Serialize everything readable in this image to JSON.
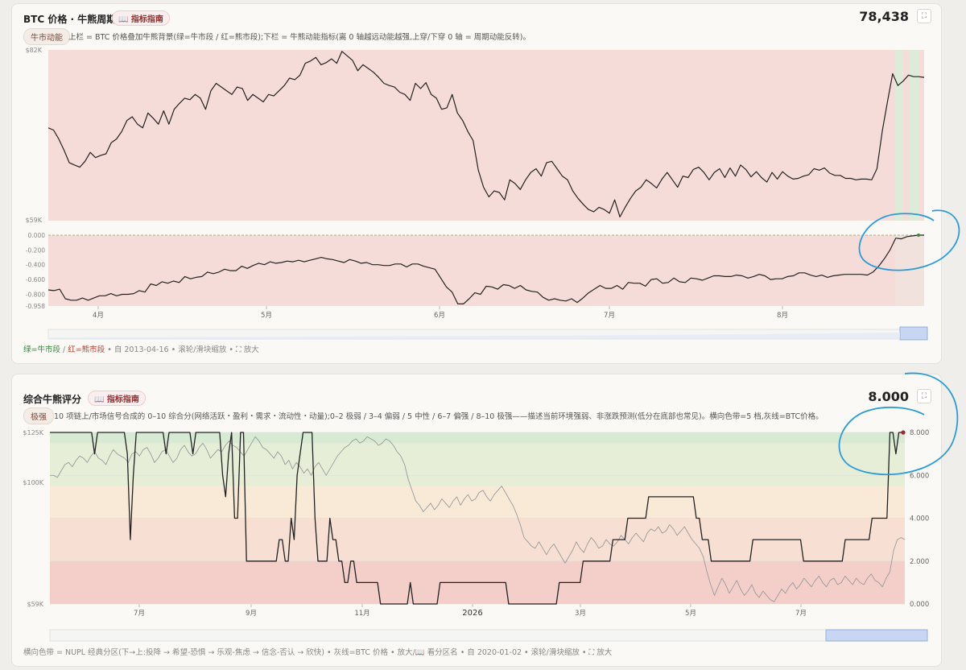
{
  "card1": {
    "title": "BTC 价格 · 牛熊周期",
    "guide_label": "📖 指标指南",
    "value": "78,438",
    "tag": "牛市动能",
    "description": "上栏 = BTC 价格叠加牛熊背景(绿=牛市段 / 红=熊市段);下栏 = 牛熊动能指标(离 0 轴越远动能越强,上穿/下穿 0 轴 = 周期动能反转)。",
    "footer": {
      "green": "绿=牛市段",
      "sep": " / ",
      "red": "红=熊市段",
      "rest": " • 自 2013-04-16 • 滚轮/滑块缩放 • ⛶ 放大"
    }
  },
  "card2": {
    "title": "综合牛熊评分",
    "guide_label": "📖 指标指南",
    "value": "8.000",
    "tag": "极强",
    "description": "10 项链上/市场信号合成的 0–10 综合分(网络活跃・盈利・需求・流动性・动量);0–2 极弱 / 3–4 偏弱 / 5 中性 / 6–7 偏强 / 8–10 极强——描述当前环境强弱、非涨跌预测(低分在底部也常见)。横向色带=5 档,灰线=BTC价格。",
    "footer": "横向色带 = NUPL 经典分区(下→上:投降 → 希望-恐惧 → 乐观-焦虑 → 信念-否认 → 欣快) • 灰线=BTC 价格 • 放大/📖 看分区名 • 自 2020-01-02 • 滚轮/滑块缩放 • ⛶ 放大"
  },
  "chart_data": [
    {
      "type": "line",
      "name": "btc-price-upper",
      "ylim": [
        59000,
        82000
      ],
      "y_ticks": [
        "$82K",
        "$59K"
      ],
      "x_ticks": [
        "4月",
        "5月",
        "6月",
        "7月",
        "8月"
      ],
      "background": [
        {
          "phase": "bear",
          "color": "#f6dcd8"
        },
        {
          "phase": "bull",
          "color": "#dcecd8"
        }
      ],
      "values": [
        71500,
        71200,
        70000,
        68500,
        66800,
        66500,
        66200,
        67000,
        68200,
        67500,
        67800,
        68000,
        69500,
        70000,
        71000,
        72500,
        73000,
        72000,
        71500,
        73500,
        72800,
        72000,
        73800,
        72000,
        74000,
        74800,
        75500,
        75300,
        76000,
        75500,
        74000,
        76500,
        77500,
        77000,
        76500,
        76000,
        77000,
        76800,
        75200,
        76000,
        75500,
        75000,
        76000,
        75800,
        76500,
        77200,
        78200,
        78000,
        78600,
        80200,
        80500,
        81000,
        80000,
        80300,
        80800,
        80200,
        81800,
        81200,
        80600,
        79200,
        80000,
        79500,
        79000,
        78300,
        77500,
        77200,
        77000,
        76300,
        76000,
        75200,
        77500,
        76800,
        77600,
        76000,
        75500,
        74000,
        74200,
        76000,
        73500,
        72500,
        71000,
        69800,
        65800,
        63500,
        62200,
        63000,
        62800,
        61800,
        64500,
        64000,
        63200,
        64500,
        65500,
        66000,
        65000,
        66800,
        67000,
        66000,
        65000,
        64500,
        63000,
        62000,
        61200,
        60500,
        60200,
        60800,
        60500,
        60000,
        61800,
        59500,
        60800,
        62000,
        63000,
        63500,
        64500,
        64000,
        63400,
        64600,
        65500,
        64500,
        63500,
        65000,
        64800,
        65900,
        66200,
        65500,
        64500,
        65500,
        66000,
        64800,
        66100,
        65000,
        66500,
        65900,
        64900,
        65600,
        64800,
        64200,
        65500,
        64600,
        65600,
        65000,
        64600,
        64700,
        65000,
        65200,
        66000,
        65800,
        66100,
        65400,
        65100,
        65100,
        64700,
        64700,
        64500,
        64600,
        64600,
        64500,
        66000,
        71000,
        75000,
        78800,
        77200,
        77800,
        78600,
        78400,
        78400,
        78300
      ]
    },
    {
      "type": "line",
      "name": "bull-bear-momentum-lower",
      "ylim": [
        -0.958,
        0.0
      ],
      "y_ticks": [
        "0.000",
        "-0.200",
        "-0.400",
        "-0.600",
        "-0.800",
        "-0.958"
      ],
      "values": [
        -0.74,
        -0.75,
        -0.73,
        -0.86,
        -0.88,
        -0.88,
        -0.85,
        -0.88,
        -0.85,
        -0.82,
        -0.82,
        -0.79,
        -0.82,
        -0.8,
        -0.8,
        -0.79,
        -0.75,
        -0.77,
        -0.66,
        -0.68,
        -0.63,
        -0.65,
        -0.62,
        -0.64,
        -0.56,
        -0.59,
        -0.57,
        -0.56,
        -0.5,
        -0.52,
        -0.5,
        -0.46,
        -0.48,
        -0.48,
        -0.42,
        -0.45,
        -0.41,
        -0.38,
        -0.4,
        -0.36,
        -0.38,
        -0.37,
        -0.35,
        -0.36,
        -0.34,
        -0.36,
        -0.34,
        -0.32,
        -0.3,
        -0.32,
        -0.33,
        -0.35,
        -0.37,
        -0.33,
        -0.35,
        -0.38,
        -0.37,
        -0.4,
        -0.4,
        -0.41,
        -0.41,
        -0.39,
        -0.39,
        -0.43,
        -0.39,
        -0.39,
        -0.42,
        -0.44,
        -0.46,
        -0.58,
        -0.7,
        -0.77,
        -0.93,
        -0.93,
        -0.86,
        -0.78,
        -0.8,
        -0.69,
        -0.7,
        -0.73,
        -0.67,
        -0.68,
        -0.72,
        -0.68,
        -0.74,
        -0.76,
        -0.77,
        -0.84,
        -0.88,
        -0.86,
        -0.88,
        -0.89,
        -0.86,
        -0.91,
        -0.85,
        -0.78,
        -0.73,
        -0.68,
        -0.72,
        -0.72,
        -0.68,
        -0.73,
        -0.64,
        -0.65,
        -0.65,
        -0.69,
        -0.6,
        -0.59,
        -0.65,
        -0.64,
        -0.58,
        -0.63,
        -0.64,
        -0.58,
        -0.59,
        -0.61,
        -0.58,
        -0.55,
        -0.55,
        -0.56,
        -0.56,
        -0.54,
        -0.55,
        -0.58,
        -0.56,
        -0.53,
        -0.55,
        -0.6,
        -0.59,
        -0.59,
        -0.56,
        -0.55,
        -0.51,
        -0.51,
        -0.54,
        -0.56,
        -0.54,
        -0.57,
        -0.55,
        -0.54,
        -0.53,
        -0.53,
        -0.53,
        -0.53,
        -0.54,
        -0.5,
        -0.42,
        -0.32,
        -0.2,
        -0.04,
        -0.05,
        -0.02,
        -0.01,
        0.0,
        0.0
      ]
    },
    {
      "type": "line",
      "name": "composite-score",
      "ylim": [
        0,
        8
      ],
      "y_ticks_right": [
        "8.000",
        "6.000",
        "4.000",
        "2.000",
        "0.000"
      ],
      "y_ticks_left": [
        "$125K",
        "$100K",
        "$59K"
      ],
      "x_ticks": [
        "7月",
        "9月",
        "11月",
        "2026",
        "3月",
        "5月",
        "7月"
      ],
      "bands": [
        {
          "from": 0,
          "to": 2,
          "color": "#f4cfca"
        },
        {
          "from": 2,
          "to": 4,
          "color": "#f7dfd3"
        },
        {
          "from": 4,
          "to": 5.5,
          "color": "#f9ead8"
        },
        {
          "from": 5.5,
          "to": 7.5,
          "color": "#f5f2d6"
        },
        {
          "from": 7.5,
          "to": 8,
          "color": "#cfe8cc"
        }
      ],
      "series": [
        {
          "values": [
            8,
            8,
            8,
            8,
            8,
            8,
            8,
            8,
            8,
            8,
            8,
            8,
            8,
            8,
            8,
            7,
            8,
            8,
            8,
            8,
            8,
            8,
            8,
            8,
            8,
            8,
            7,
            3,
            6,
            8,
            8,
            8,
            8,
            8,
            8,
            8,
            8,
            8,
            8,
            7,
            8,
            8,
            8,
            8,
            8,
            8,
            8,
            8,
            7,
            8,
            8,
            8,
            8,
            8,
            8,
            8,
            8,
            8,
            6,
            5,
            7,
            8,
            4,
            4,
            8,
            8,
            2,
            2,
            2,
            2,
            2,
            2,
            2,
            2,
            2,
            2,
            2,
            3,
            3,
            2,
            2,
            4,
            3,
            6,
            7,
            8,
            8,
            8,
            8,
            4,
            2,
            2,
            2,
            2,
            4,
            3,
            3,
            2,
            2,
            1,
            1,
            2,
            2,
            1,
            1,
            1,
            1,
            1,
            1,
            1,
            1,
            0,
            0,
            0,
            0,
            0,
            0,
            0,
            0,
            0,
            0,
            1,
            0,
            0,
            0,
            0,
            0,
            0,
            0,
            0,
            0,
            1,
            1,
            1,
            1,
            1,
            1,
            1,
            1,
            1,
            1,
            1,
            1,
            1,
            1,
            1,
            1,
            1,
            1,
            1,
            1,
            1,
            1,
            1,
            0,
            0,
            0,
            0,
            0,
            0,
            0,
            0,
            0,
            0,
            0,
            0,
            0,
            0,
            0,
            0,
            0,
            1,
            1,
            1,
            1,
            1,
            1,
            1,
            1,
            2,
            2,
            2,
            2,
            2,
            2,
            2,
            2,
            2,
            2,
            3,
            3,
            3,
            3,
            3,
            4,
            4,
            4,
            4,
            4,
            4,
            4,
            5,
            5,
            5,
            5,
            5,
            5,
            5,
            5,
            5,
            5,
            5,
            5,
            5,
            5,
            5,
            5,
            4,
            4,
            3,
            3,
            3,
            2,
            2,
            2,
            2,
            2,
            2,
            2,
            2,
            2,
            2,
            2,
            2,
            2,
            2,
            3,
            3,
            3,
            3,
            3,
            3,
            3,
            3,
            3,
            3,
            3,
            3,
            3,
            3,
            3,
            3,
            3,
            2,
            2,
            2,
            2,
            2,
            2,
            2,
            2,
            2,
            2,
            2,
            2,
            2,
            2,
            3,
            3,
            3,
            3,
            3,
            3,
            3,
            3,
            3,
            4,
            4,
            4,
            4,
            4,
            4,
            8,
            8,
            7,
            8,
            8,
            8
          ]
        },
        {
          "values": [
            6,
            6,
            5.9,
            6.2,
            6.5,
            6.6,
            6.4,
            6.7,
            6.9,
            6.8,
            6.6,
            6.9,
            7.1,
            6.8,
            6.7,
            6.5,
            6.9,
            7.2,
            7.0,
            6.9,
            6.8,
            6.6,
            7.0,
            7.1,
            6.9,
            7.2,
            7.3,
            7.0,
            6.6,
            6.8,
            7.1,
            7.2,
            6.9,
            6.6,
            6.8,
            7.2,
            7.4,
            7.1,
            6.9,
            7.0,
            7.3,
            7.5,
            7.2,
            6.8,
            7.0,
            7.2,
            7.1,
            7.4,
            7.6,
            7.4,
            7.3,
            7.1,
            6.9,
            7.2,
            7.5,
            7.8,
            7.6,
            7.3,
            7.2,
            7.0,
            6.8,
            7.1,
            6.9,
            6.5,
            6.7,
            6.3,
            6.6,
            6.4,
            6.1,
            6.3,
            6.0,
            6.4,
            6.6,
            6.3,
            6.0,
            6.3,
            6.6,
            6.9,
            7.1,
            7.3,
            7.4,
            7.6,
            7.7,
            7.5,
            7.6,
            7.8,
            7.7,
            7.6,
            7.4,
            7.5,
            7.7,
            7.6,
            7.4,
            7.1,
            6.9,
            6.5,
            5.8,
            5.3,
            4.8,
            4.6,
            4.3,
            4.5,
            4.7,
            4.4,
            4.6,
            4.9,
            4.7,
            4.5,
            4.8,
            5.0,
            4.6,
            4.9,
            5.1,
            4.8,
            4.9,
            5.2,
            5.3,
            5.0,
            4.8,
            5.1,
            5.3,
            5.5,
            5.2,
            4.9,
            4.6,
            4.2,
            3.7,
            3.1,
            2.9,
            2.7,
            2.6,
            2.9,
            2.6,
            2.3,
            2.6,
            2.8,
            2.5,
            2.2,
            1.9,
            2.2,
            2.5,
            2.9,
            2.6,
            2.4,
            2.8,
            3.1,
            2.9,
            2.6,
            2.7,
            3.0,
            2.8,
            2.7,
            2.9,
            3.2,
            3.0,
            2.8,
            3.1,
            3.3,
            3.1,
            2.9,
            3.3,
            3.5,
            3.4,
            3.6,
            3.3,
            3.4,
            3.7,
            3.5,
            3.2,
            3.4,
            3.6,
            3.3,
            3.0,
            2.8,
            2.6,
            2.2,
            1.5,
            0.9,
            0.4,
            0.8,
            1.2,
            0.9,
            0.5,
            0.8,
            1.1,
            0.7,
            0.4,
            0.6,
            0.9,
            0.5,
            0.3,
            0.6,
            0.4,
            0.2,
            0.1,
            0.4,
            0.7,
            0.5,
            0.8,
            1.0,
            0.7,
            0.9,
            1.2,
            1.0,
            0.8,
            1.1,
            1.3,
            1.0,
            0.8,
            1.1,
            1.2,
            0.9,
            1.0,
            1.3,
            1.1,
            0.9,
            1.2,
            1.0,
            0.9,
            1.2,
            1.4,
            1.1,
            1.0,
            0.8,
            1.2,
            1.5,
            2.5,
            3.0,
            3.1,
            3.0
          ]
        }
      ]
    }
  ]
}
